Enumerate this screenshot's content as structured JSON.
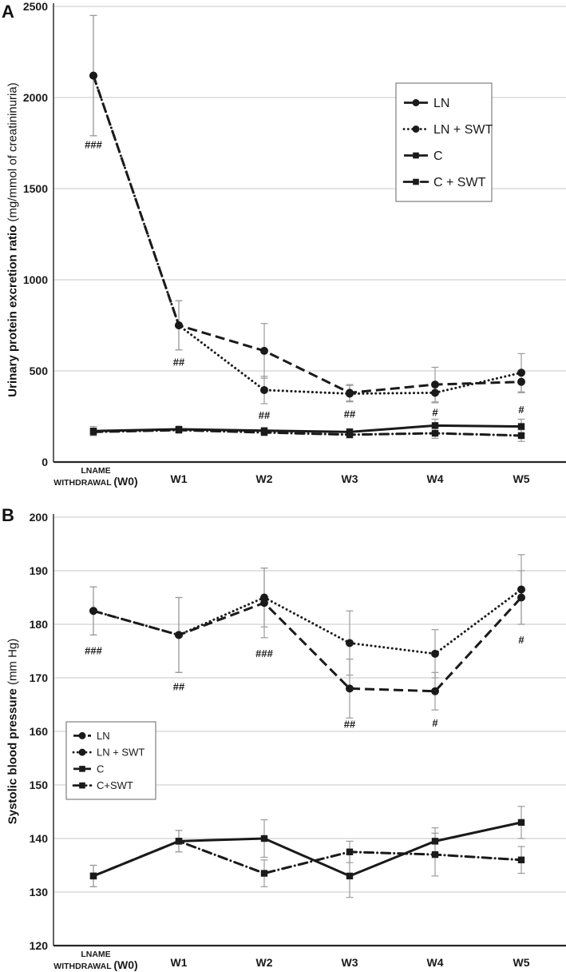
{
  "colors": {
    "line": "#1a1a1a",
    "grid": "#c7c7c7",
    "error_bar": "#9b9b9b",
    "axis": "#3d3d3d",
    "legend_border": "#7f7f7f",
    "background": "#ffffff"
  },
  "chart_data": [
    {
      "type": "line",
      "panel_label": "A",
      "ylabel_bold": "Urinary protein excretion ratio",
      "ylabel_units": "(mg/mmol of creatininuria)",
      "ylim": [
        0,
        2500
      ],
      "yticks": [
        0,
        500,
        1000,
        1500,
        2000,
        2500
      ],
      "grid": true,
      "legend_position": "top-right",
      "x_categories": [
        {
          "lines": [
            "LNAME",
            "WITHDRAWAL (W0)"
          ]
        },
        {
          "lines": [
            "W1"
          ]
        },
        {
          "lines": [
            "W2"
          ]
        },
        {
          "lines": [
            "W3"
          ]
        },
        {
          "lines": [
            "W4"
          ]
        },
        {
          "lines": [
            "W5"
          ]
        }
      ],
      "series": [
        {
          "name": "LN",
          "marker": "circle",
          "line_style": "dashed",
          "values": [
            2120,
            750,
            610,
            380,
            425,
            440
          ],
          "errors": [
            330,
            135,
            150,
            45,
            95,
            60
          ]
        },
        {
          "name": "LN + SWT",
          "marker": "circle",
          "line_style": "dotted",
          "values": [
            2120,
            750,
            395,
            375,
            380,
            490
          ],
          "errors": [
            330,
            135,
            75,
            45,
            55,
            105
          ]
        },
        {
          "name": "C",
          "marker": "square",
          "line_style": "solid",
          "values": [
            170,
            180,
            172,
            165,
            200,
            195
          ],
          "errors": [
            25,
            15,
            15,
            18,
            35,
            40
          ]
        },
        {
          "name": "C + SWT",
          "marker": "square",
          "line_style": "dashdot",
          "values": [
            165,
            175,
            162,
            150,
            158,
            145
          ],
          "errors": [
            20,
            12,
            14,
            18,
            28,
            32
          ]
        }
      ],
      "annotations": [
        {
          "category_index": 0,
          "y": 1740,
          "text": "###"
        },
        {
          "category_index": 1,
          "y": 545,
          "text": "##"
        },
        {
          "category_index": 2,
          "y": 255,
          "text": "##"
        },
        {
          "category_index": 3,
          "y": 260,
          "text": "##"
        },
        {
          "category_index": 4,
          "y": 270,
          "text": "#"
        },
        {
          "category_index": 5,
          "y": 285,
          "text": "#"
        }
      ]
    },
    {
      "type": "line",
      "panel_label": "B",
      "ylabel_bold": "Systolic blood pressure",
      "ylabel_units": "(mm Hg)",
      "ylim": [
        120,
        200
      ],
      "yticks": [
        120,
        130,
        140,
        150,
        160,
        170,
        180,
        190,
        200
      ],
      "grid": true,
      "legend_position": "mid-left",
      "x_categories": [
        {
          "lines": [
            "LNAME",
            "WITHDRAWAL (W0)"
          ]
        },
        {
          "lines": [
            "W1"
          ]
        },
        {
          "lines": [
            "W2"
          ]
        },
        {
          "lines": [
            "W3"
          ]
        },
        {
          "lines": [
            "W4"
          ]
        },
        {
          "lines": [
            "W5"
          ]
        }
      ],
      "series": [
        {
          "name": "LN",
          "marker": "circle",
          "line_style": "dashed",
          "values": [
            182.5,
            178,
            184,
            168,
            167.5,
            185
          ],
          "errors": [
            4.5,
            7,
            6.5,
            5.5,
            3.5,
            5
          ]
        },
        {
          "name": "LN + SWT",
          "marker": "circle",
          "line_style": "dotted",
          "values": [
            182.5,
            178,
            185,
            176.5,
            174.5,
            186.5
          ],
          "errors": [
            4.5,
            7,
            5.5,
            6,
            4.5,
            6.5
          ]
        },
        {
          "name": "C",
          "marker": "square",
          "line_style": "solid",
          "values": [
            133,
            139.5,
            140,
            133,
            139.5,
            143
          ],
          "errors": [
            2,
            2,
            3.5,
            4,
            2.5,
            3
          ]
        },
        {
          "name": "C+SWT",
          "marker": "square",
          "line_style": "dashdot",
          "values": [
            133,
            139.5,
            133.5,
            137.5,
            137,
            136
          ],
          "errors": [
            2,
            2,
            2.5,
            2,
            4,
            2.5
          ]
        }
      ],
      "annotations": [
        {
          "category_index": 0,
          "y": 175,
          "text": "###"
        },
        {
          "category_index": 1,
          "y": 168.3,
          "text": "##"
        },
        {
          "category_index": 2,
          "y": 174.5,
          "text": "###"
        },
        {
          "category_index": 3,
          "y": 161.3,
          "text": "##"
        },
        {
          "category_index": 4,
          "y": 161.5,
          "text": "#"
        },
        {
          "category_index": 5,
          "y": 177,
          "text": "#"
        }
      ]
    }
  ]
}
